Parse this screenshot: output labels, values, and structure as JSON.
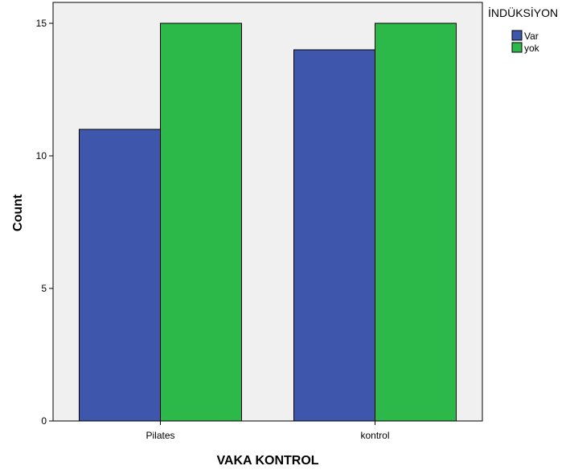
{
  "chart_data": {
    "type": "bar",
    "categories": [
      "Pilates",
      "kontrol"
    ],
    "series": [
      {
        "name": "Var",
        "values": [
          11,
          14
        ],
        "color": "#3f56ad"
      },
      {
        "name": "yok",
        "values": [
          15,
          15
        ],
        "color": "#2db84a"
      }
    ],
    "xlabel": "VAKA KONTROL",
    "ylabel": "Count",
    "ylim": [
      0,
      16
    ],
    "yticks": [
      0,
      5,
      10,
      15
    ],
    "legend_title": "İNDÜKSİYON",
    "legend_position": "top-right",
    "plot_background": "#f0f0f0",
    "grid": false
  }
}
